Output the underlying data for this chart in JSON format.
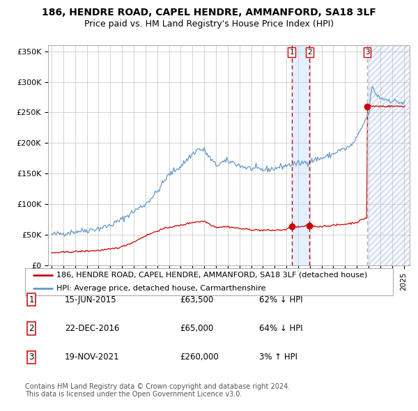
{
  "title": "186, HENDRE ROAD, CAPEL HENDRE, AMMANFORD, SA18 3LF",
  "subtitle": "Price paid vs. HM Land Registry's House Price Index (HPI)",
  "ylim": [
    0,
    360000
  ],
  "yticks": [
    0,
    50000,
    100000,
    150000,
    200000,
    250000,
    300000,
    350000
  ],
  "ytick_labels": [
    "£0",
    "£50K",
    "£100K",
    "£150K",
    "£200K",
    "£250K",
    "£300K",
    "£350K"
  ],
  "xlim_start": 1994.7,
  "xlim_end": 2025.5,
  "hpi_color": "#6699cc",
  "price_color": "#cc0000",
  "marker_color": "#cc0000",
  "transaction_dates": [
    2015.45,
    2016.98,
    2021.89
  ],
  "transaction_prices": [
    63500,
    65000,
    260000
  ],
  "transaction_labels": [
    "1",
    "2",
    "3"
  ],
  "shade_start": 2015.45,
  "shade_end": 2016.98,
  "shade_color": "#ddeeff",
  "hatched_region_start": 2022.0,
  "hatched_region_end": 2025.5,
  "legend_line1": "186, HENDRE ROAD, CAPEL HENDRE, AMMANFORD, SA18 3LF (detached house)",
  "legend_line2": "HPI: Average price, detached house, Carmarthenshire",
  "table_rows": [
    [
      "1",
      "15-JUN-2015",
      "£63,500",
      "62% ↓ HPI"
    ],
    [
      "2",
      "22-DEC-2016",
      "£65,000",
      "64% ↓ HPI"
    ],
    [
      "3",
      "19-NOV-2021",
      "£260,000",
      "3% ↑ HPI"
    ]
  ],
  "footnote": "Contains HM Land Registry data © Crown copyright and database right 2024.\nThis data is licensed under the Open Government Licence v3.0.",
  "background_color": "#ffffff",
  "grid_color": "#cccccc",
  "title_fontsize": 10,
  "subtitle_fontsize": 9,
  "tick_fontsize": 8,
  "legend_fontsize": 8,
  "table_fontsize": 8.5,
  "footnote_fontsize": 7
}
